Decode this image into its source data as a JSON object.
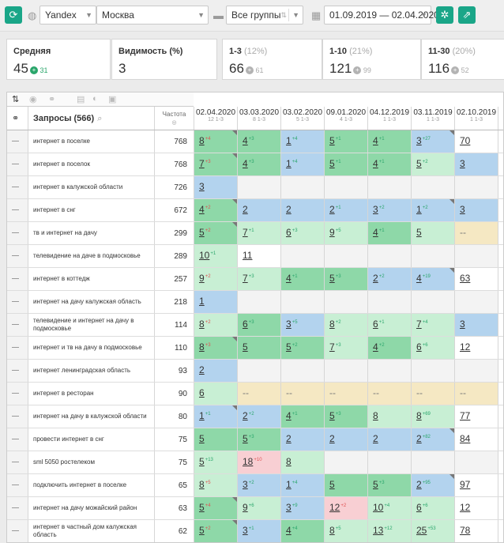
{
  "toolbar": {
    "search_engine": "Yandex",
    "region": "Москва",
    "groups": "Все группы",
    "date_range": "01.09.2019 — 02.04.2020"
  },
  "stats": [
    {
      "label": "Средняя",
      "pct": "",
      "value": "45",
      "delta": "31",
      "delta_dir": "up"
    },
    {
      "label": "Видимость (%)",
      "pct": "",
      "value": "3",
      "delta": "",
      "delta_dir": ""
    },
    {
      "label": "1-3",
      "pct": "(12%)",
      "value": "66",
      "delta": "61",
      "delta_dir": "none"
    },
    {
      "label": "1-10",
      "pct": "(21%)",
      "value": "121",
      "delta": "99",
      "delta_dir": "none"
    },
    {
      "label": "11-30",
      "pct": "(20%)",
      "value": "116",
      "delta": "52",
      "delta_dir": "none"
    }
  ],
  "table": {
    "queries_header": "Запросы (566)",
    "freq_header": "Частота",
    "dates": [
      "02.04.2020",
      "03.03.2020",
      "03.02.2020",
      "09.01.2020",
      "04.12.2019",
      "03.11.2019",
      "02.10.2019"
    ],
    "date_subs": [
      "12 1-3",
      "8 1-3",
      "5 1-3",
      "4 1-3",
      "1 1-3",
      "1 1-3",
      "1 1-3"
    ],
    "rows": [
      {
        "q": "интернет в поселке",
        "f": "768",
        "c": [
          [
            "8",
            "+4",
            "g"
          ],
          [
            "4",
            "+3",
            "g"
          ],
          [
            "1",
            "+4",
            "b"
          ],
          [
            "5",
            "+1",
            "g"
          ],
          [
            "4",
            "+1",
            "g"
          ],
          [
            "3",
            "+27",
            "b"
          ],
          [
            "70",
            "",
            "w"
          ]
        ]
      },
      {
        "q": "интернет в поселок",
        "f": "768",
        "c": [
          [
            "7",
            "+3",
            "g"
          ],
          [
            "4",
            "+3",
            "g"
          ],
          [
            "1",
            "+4",
            "b"
          ],
          [
            "5",
            "+1",
            "g"
          ],
          [
            "4",
            "+1",
            "g"
          ],
          [
            "5",
            "+2",
            "lg"
          ],
          [
            "3",
            "",
            "b"
          ]
        ]
      },
      {
        "q": "интернет в калужской области",
        "f": "726",
        "c": [
          [
            "3",
            "",
            "b"
          ],
          [
            "",
            "",
            "e"
          ],
          [
            "",
            "",
            "e"
          ],
          [
            "",
            "",
            "e"
          ],
          [
            "",
            "",
            "e"
          ],
          [
            "",
            "",
            "e"
          ],
          [
            "",
            "",
            "e"
          ]
        ]
      },
      {
        "q": "интернет в снг",
        "f": "672",
        "c": [
          [
            "4",
            "+2",
            "g"
          ],
          [
            "2",
            "",
            "b"
          ],
          [
            "2",
            "",
            "b"
          ],
          [
            "2",
            "+1",
            "b"
          ],
          [
            "3",
            "+2",
            "b"
          ],
          [
            "1",
            "+2",
            "b"
          ],
          [
            "3",
            "",
            "b"
          ]
        ]
      },
      {
        "q": "тв и интернет на дачу",
        "f": "299",
        "c": [
          [
            "5",
            "+2",
            "g"
          ],
          [
            "7",
            "+1",
            "lg"
          ],
          [
            "6",
            "+3",
            "lg"
          ],
          [
            "9",
            "+5",
            "lg"
          ],
          [
            "4",
            "+1",
            "g"
          ],
          [
            "5",
            "",
            "lg"
          ],
          [
            "--",
            "",
            "y"
          ]
        ]
      },
      {
        "q": "телевидение на даче в подмосковье",
        "f": "289",
        "c": [
          [
            "10",
            "+1",
            "lg"
          ],
          [
            "11",
            "",
            "w"
          ],
          [
            "",
            "",
            "e"
          ],
          [
            "",
            "",
            "e"
          ],
          [
            "",
            "",
            "e"
          ],
          [
            "",
            "",
            "e"
          ],
          [
            "",
            "",
            "e"
          ]
        ]
      },
      {
        "q": "интернет в коттедж",
        "f": "257",
        "c": [
          [
            "9",
            "+2",
            "lg"
          ],
          [
            "7",
            "+3",
            "lg"
          ],
          [
            "4",
            "+1",
            "g"
          ],
          [
            "5",
            "+3",
            "g"
          ],
          [
            "2",
            "+2",
            "b"
          ],
          [
            "4",
            "+19",
            "b"
          ],
          [
            "63",
            "",
            "w"
          ]
        ]
      },
      {
        "q": "интернет на дачу калужская область",
        "f": "218",
        "c": [
          [
            "1",
            "",
            "b"
          ],
          [
            "",
            "",
            "e"
          ],
          [
            "",
            "",
            "e"
          ],
          [
            "",
            "",
            "e"
          ],
          [
            "",
            "",
            "e"
          ],
          [
            "",
            "",
            "e"
          ],
          [
            "",
            "",
            "e"
          ]
        ]
      },
      {
        "q": "телевидение и интернет на дачу в подмосковье",
        "f": "114",
        "c": [
          [
            "8",
            "+2",
            "lg"
          ],
          [
            "6",
            "+3",
            "g"
          ],
          [
            "3",
            "+5",
            "b"
          ],
          [
            "8",
            "+2",
            "lg"
          ],
          [
            "6",
            "+1",
            "lg"
          ],
          [
            "7",
            "+4",
            "lg"
          ],
          [
            "3",
            "",
            "b"
          ]
        ]
      },
      {
        "q": "интернет и тв на дачу в подмосковье",
        "f": "110",
        "c": [
          [
            "8",
            "+3",
            "g"
          ],
          [
            "5",
            "",
            "g"
          ],
          [
            "5",
            "+2",
            "g"
          ],
          [
            "7",
            "+3",
            "lg"
          ],
          [
            "4",
            "+2",
            "g"
          ],
          [
            "6",
            "+6",
            "lg"
          ],
          [
            "12",
            "",
            "w"
          ]
        ]
      },
      {
        "q": "интернет ленинградская область",
        "f": "93",
        "c": [
          [
            "2",
            "",
            "b"
          ],
          [
            "",
            "",
            "e"
          ],
          [
            "",
            "",
            "e"
          ],
          [
            "",
            "",
            "e"
          ],
          [
            "",
            "",
            "e"
          ],
          [
            "",
            "",
            "e"
          ],
          [
            "",
            "",
            "e"
          ]
        ]
      },
      {
        "q": "интернет в ресторан",
        "f": "90",
        "c": [
          [
            "6",
            "",
            "lg"
          ],
          [
            "--",
            "",
            "y"
          ],
          [
            "--",
            "",
            "y"
          ],
          [
            "--",
            "",
            "y"
          ],
          [
            "--",
            "",
            "y"
          ],
          [
            "--",
            "",
            "y"
          ],
          [
            "--",
            "",
            "y"
          ]
        ]
      },
      {
        "q": "интернет на дачу в калужской области",
        "f": "80",
        "c": [
          [
            "1",
            "+1",
            "b"
          ],
          [
            "2",
            "+2",
            "b"
          ],
          [
            "4",
            "+1",
            "g"
          ],
          [
            "5",
            "+3",
            "g"
          ],
          [
            "8",
            "",
            "lg"
          ],
          [
            "8",
            "+69",
            "lg"
          ],
          [
            "77",
            "",
            "w"
          ]
        ]
      },
      {
        "q": "провести интернет в снг",
        "f": "75",
        "c": [
          [
            "5",
            "",
            "g"
          ],
          [
            "5",
            "+3",
            "g"
          ],
          [
            "2",
            "",
            "b"
          ],
          [
            "2",
            "",
            "b"
          ],
          [
            "2",
            "",
            "b"
          ],
          [
            "2",
            "+82",
            "b"
          ],
          [
            "84",
            "",
            "w"
          ]
        ]
      },
      {
        "q": "sml 5050 ростелеком",
        "f": "75",
        "c": [
          [
            "5",
            "+13",
            "lg"
          ],
          [
            "18",
            "+10",
            "p"
          ],
          [
            "8",
            "",
            "lg"
          ],
          [
            "",
            "",
            "e"
          ],
          [
            "",
            "",
            "e"
          ],
          [
            "",
            "",
            "e"
          ],
          [
            "",
            "",
            "e"
          ]
        ]
      },
      {
        "q": "подключить интернет в поселке",
        "f": "65",
        "c": [
          [
            "8",
            "+5",
            "lg"
          ],
          [
            "3",
            "+2",
            "b"
          ],
          [
            "1",
            "+4",
            "b"
          ],
          [
            "5",
            "",
            "g"
          ],
          [
            "5",
            "+3",
            "g"
          ],
          [
            "2",
            "+95",
            "b"
          ],
          [
            "97",
            "",
            "w"
          ]
        ]
      },
      {
        "q": "интернет на дачу можайский район",
        "f": "63",
        "c": [
          [
            "5",
            "+4",
            "g"
          ],
          [
            "9",
            "+6",
            "lg"
          ],
          [
            "3",
            "+9",
            "b"
          ],
          [
            "12",
            "+2",
            "p"
          ],
          [
            "10",
            "+4",
            "lg"
          ],
          [
            "6",
            "+6",
            "lg"
          ],
          [
            "12",
            "",
            "w"
          ]
        ]
      },
      {
        "q": "интернет в частный дом калужская область",
        "f": "62",
        "c": [
          [
            "5",
            "+2",
            "g"
          ],
          [
            "3",
            "+1",
            "b"
          ],
          [
            "4",
            "+4",
            "g"
          ],
          [
            "8",
            "+5",
            "lg"
          ],
          [
            "13",
            "+12",
            "lg"
          ],
          [
            "25",
            "+53",
            "lg"
          ],
          [
            "78",
            "",
            "w"
          ]
        ]
      }
    ]
  },
  "colors": {
    "accent": "#1aa688",
    "green": "#8ed8a8",
    "light_green": "#c8efd4",
    "blue": "#b3d3ee",
    "yellow": "#f5e8c3",
    "pink": "#f8cfd3"
  }
}
